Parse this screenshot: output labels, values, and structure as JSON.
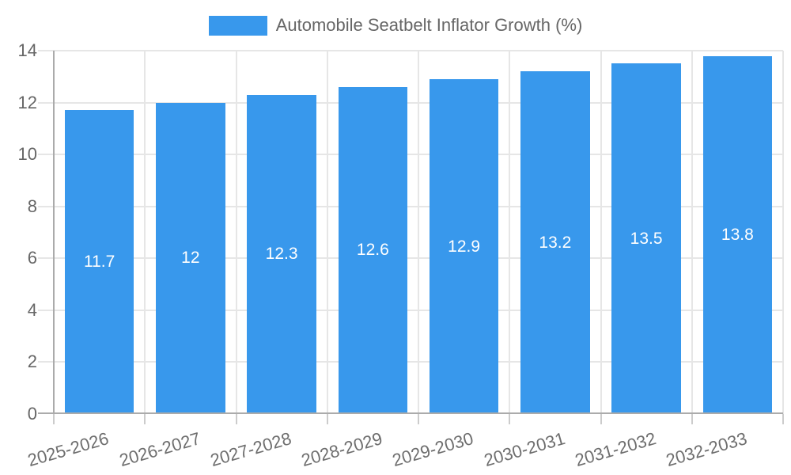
{
  "chart_data": {
    "type": "bar",
    "title": "Automobile Seatbelt Inflator Growth (%)",
    "categories": [
      "2025-2026",
      "2026-2027",
      "2027-2028",
      "2028-2029",
      "2029-2030",
      "2030-2031",
      "2031-2032",
      "2032-2033"
    ],
    "values": [
      11.7,
      12,
      12.3,
      12.6,
      12.9,
      13.2,
      13.5,
      13.8
    ],
    "value_labels": [
      "11.7",
      "12",
      "12.3",
      "12.6",
      "12.9",
      "13.2",
      "13.5",
      "13.8"
    ],
    "xlabel": "",
    "ylabel": "",
    "ylim": [
      0,
      14
    ],
    "yticks": [
      0,
      2,
      4,
      6,
      8,
      10,
      12,
      14
    ],
    "grid": true,
    "legend_position": "top-center",
    "x_label_rotation_deg": -16,
    "colors": {
      "bar": "#3898ec",
      "value_label": "#ffffff",
      "axis_text": "#666666",
      "grid_line": "#e6e6e6",
      "axis_line": "#ababab",
      "tick_mark": "#cccccc",
      "background": "#ffffff"
    }
  }
}
